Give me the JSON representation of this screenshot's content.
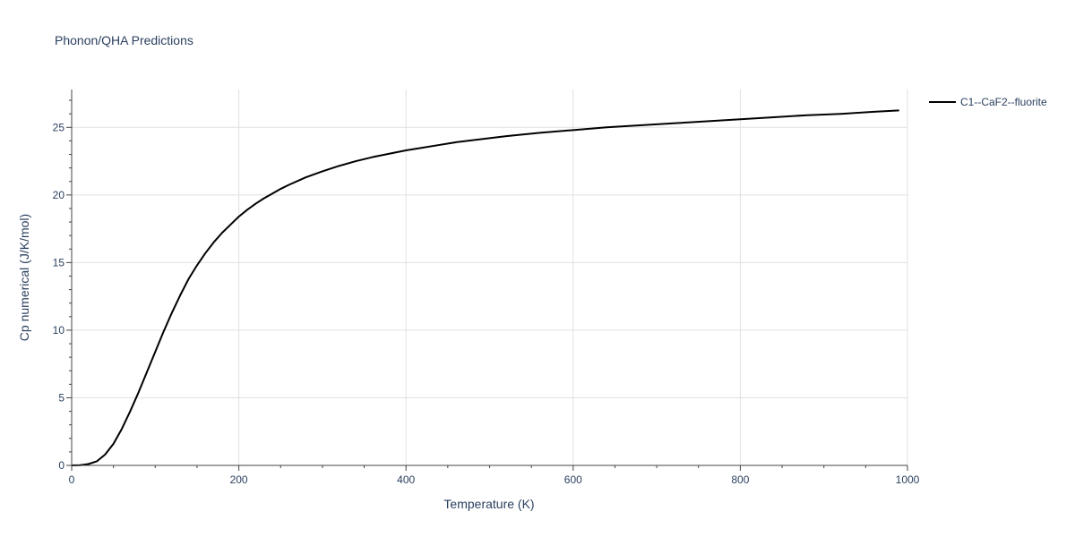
{
  "chart_data": {
    "type": "line",
    "title": "Phonon/QHA Predictions",
    "xlabel": "Temperature (K)",
    "ylabel": "Cp numerical (J/K/mol)",
    "xlim": [
      0,
      1000
    ],
    "ylim": [
      0,
      27.8
    ],
    "xticks": [
      0,
      200,
      400,
      600,
      800,
      1000
    ],
    "yticks": [
      0,
      5,
      10,
      15,
      20,
      25
    ],
    "grid": true,
    "legend_position": "top-right",
    "series": [
      {
        "name": "C1--CaF2--fluorite",
        "color": "#000000",
        "x": [
          0,
          10,
          20,
          30,
          40,
          50,
          60,
          70,
          80,
          90,
          100,
          110,
          120,
          130,
          140,
          150,
          160,
          170,
          180,
          190,
          200,
          210,
          220,
          230,
          240,
          250,
          260,
          280,
          300,
          320,
          340,
          360,
          380,
          400,
          420,
          440,
          460,
          480,
          520,
          560,
          600,
          640,
          680,
          720,
          760,
          800,
          840,
          880,
          920,
          960,
          990
        ],
        "y": [
          0,
          0.02,
          0.1,
          0.3,
          0.8,
          1.6,
          2.7,
          4.0,
          5.4,
          6.9,
          8.4,
          9.9,
          11.3,
          12.6,
          13.8,
          14.8,
          15.7,
          16.5,
          17.2,
          17.8,
          18.4,
          18.9,
          19.35,
          19.75,
          20.1,
          20.45,
          20.75,
          21.3,
          21.75,
          22.15,
          22.5,
          22.8,
          23.05,
          23.3,
          23.5,
          23.7,
          23.9,
          24.05,
          24.35,
          24.6,
          24.8,
          25.0,
          25.15,
          25.3,
          25.45,
          25.6,
          25.75,
          25.9,
          26.0,
          26.15,
          26.25
        ]
      }
    ]
  }
}
